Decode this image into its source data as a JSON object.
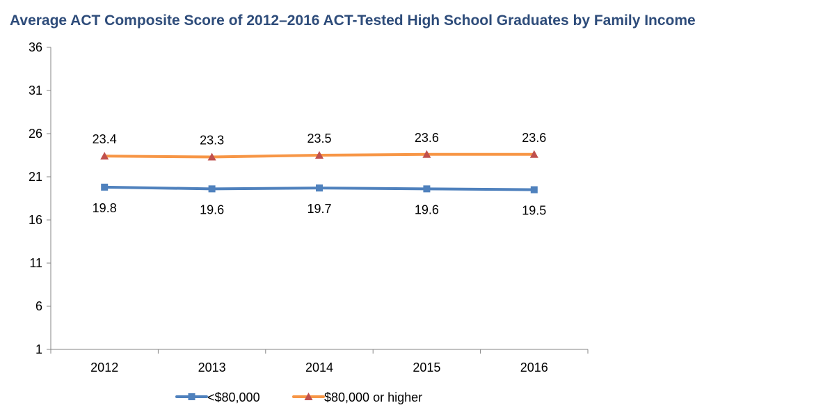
{
  "chart_data": {
    "type": "line",
    "title": "Average ACT Composite Score of 2012–2016 ACT-Tested High School Graduates by Family Income",
    "categories": [
      "2012",
      "2013",
      "2014",
      "2015",
      "2016"
    ],
    "series": [
      {
        "name": "<$80,000",
        "values": [
          19.8,
          19.6,
          19.7,
          19.6,
          19.5
        ],
        "labels": [
          "19.8",
          "19.6",
          "19.7",
          "19.6",
          "19.5"
        ],
        "color": "#4F81BD",
        "marker": "square",
        "label_position": "below"
      },
      {
        "name": "$80,000 or higher",
        "values": [
          23.4,
          23.3,
          23.5,
          23.6,
          23.6
        ],
        "labels": [
          "23.4",
          "23.3",
          "23.5",
          "23.6",
          "23.6"
        ],
        "color": "#F79646",
        "marker_color": "#C0504D",
        "marker": "triangle",
        "label_position": "above"
      }
    ],
    "yticks": [
      1,
      6,
      11,
      16,
      21,
      26,
      31,
      36
    ],
    "ylim": [
      1,
      36
    ],
    "xlabel": "",
    "ylabel": "",
    "grid": false,
    "legend": "bottom"
  }
}
